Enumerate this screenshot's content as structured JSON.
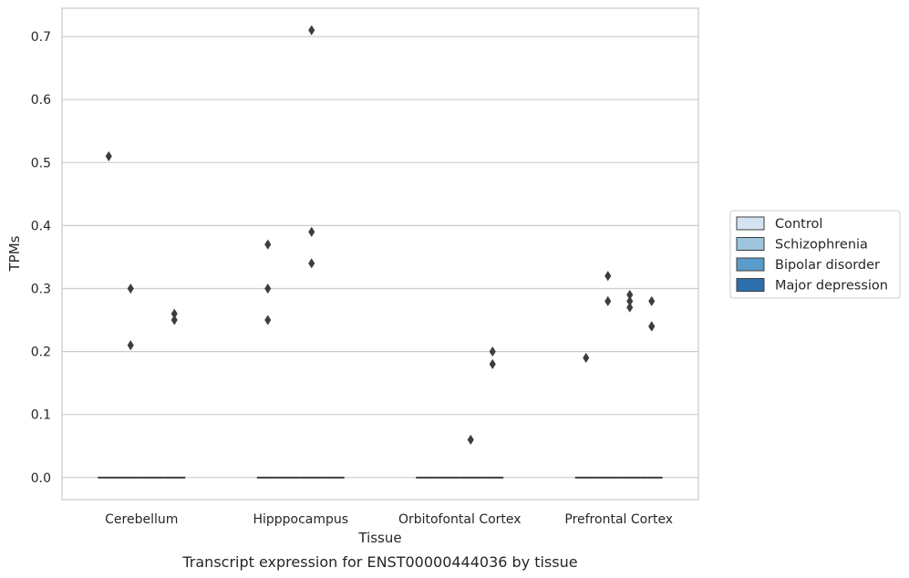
{
  "chart_data": {
    "type": "box",
    "xlabel": "Tissue",
    "ylabel": "TPMs",
    "caption": "Transcript expression for ENST00000444036 by tissue",
    "ylim": [
      -0.035,
      0.745
    ],
    "yticks": [
      0.0,
      0.1,
      0.2,
      0.3,
      0.4,
      0.5,
      0.6,
      0.7
    ],
    "ytick_labels": [
      "0.0",
      "0.1",
      "0.2",
      "0.3",
      "0.4",
      "0.5",
      "0.6",
      "0.7"
    ],
    "grid": true,
    "legend_position": "right",
    "categories": [
      "Cerebellum",
      "Hipppocampus",
      "Orbitofontal Cortex",
      "Prefrontal Cortex"
    ],
    "series": [
      {
        "name": "Control",
        "color": "#d4e3f2",
        "median": [
          0,
          0,
          0,
          0
        ],
        "outliers": [
          [
            0.51
          ],
          [
            0.37,
            0.3,
            0.25
          ],
          [],
          [
            0.19
          ]
        ]
      },
      {
        "name": "Schizophrenia",
        "color": "#9dc5de",
        "median": [
          0,
          0,
          0,
          0
        ],
        "outliers": [
          [
            0.3,
            0.21
          ],
          [],
          [],
          [
            0.32,
            0.28
          ]
        ]
      },
      {
        "name": "Bipolar disorder",
        "color": "#5a9ccb",
        "median": [
          0,
          0,
          0,
          0
        ],
        "outliers": [
          [],
          [
            0.71,
            0.39,
            0.34
          ],
          [
            0.06
          ],
          [
            0.29,
            0.28,
            0.27
          ]
        ]
      },
      {
        "name": "Major depression",
        "color": "#2d6fae",
        "median": [
          0,
          0,
          0,
          0
        ],
        "outliers": [
          [
            0.26,
            0.25
          ],
          [],
          [
            0.2,
            0.18
          ],
          [
            0.28,
            0.24,
            0.24
          ]
        ]
      }
    ]
  }
}
